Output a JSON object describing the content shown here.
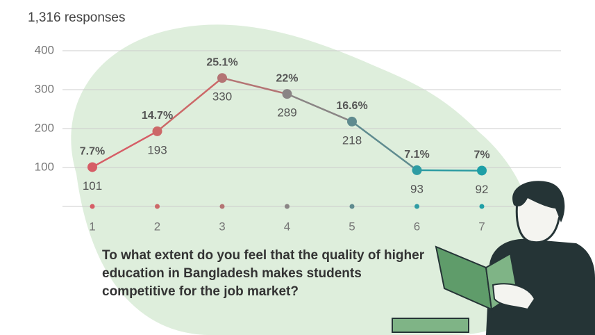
{
  "chart_data": {
    "type": "line",
    "subtitle": "1,316 responses",
    "title": "To what extent do you feel that the quality of higher education in Bangladesh makes students competitive for the job market?",
    "categories": [
      "1",
      "2",
      "3",
      "4",
      "5",
      "6",
      "7"
    ],
    "values": [
      101,
      193,
      330,
      289,
      218,
      93,
      92
    ],
    "percent_labels": [
      "7.7%",
      "14.7%",
      "25.1%",
      "22%",
      "16.6%",
      "7.1%",
      "7%"
    ],
    "point_colors": [
      "#d65d66",
      "#cc6868",
      "#b47474",
      "#8a8585",
      "#5f8b8f",
      "#2e9ca3",
      "#1e9fa6"
    ],
    "ylim": [
      0,
      400
    ],
    "yticks": [
      100,
      200,
      300,
      400
    ],
    "grid": true
  }
}
